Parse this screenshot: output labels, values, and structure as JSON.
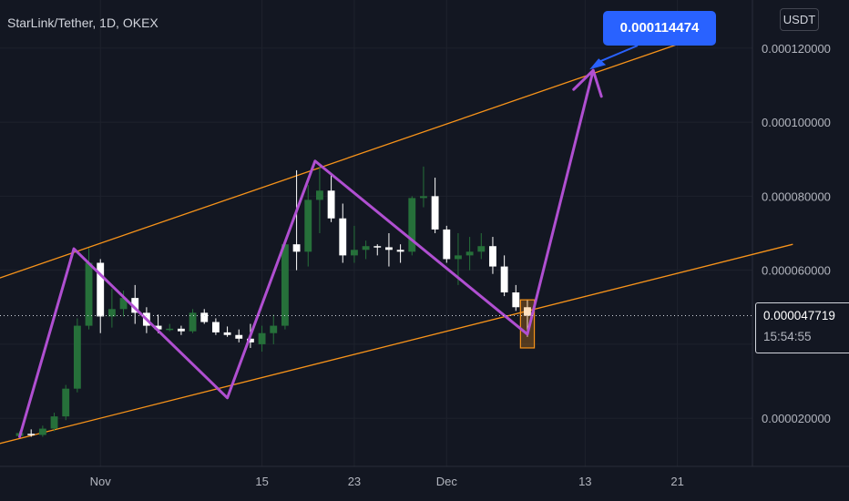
{
  "header": {
    "symbol_title": "StarLink/Tether, 1D, OKEX",
    "currency": "USDT"
  },
  "target_label": "0.000114474",
  "current_price": {
    "value": "0.000047719",
    "countdown": "15:54:55"
  },
  "colors": {
    "background": "#131722",
    "up_candle": "#26703a",
    "down_candle": "#ffffff",
    "channel": "#f7931a",
    "zigzag": "#b04fd1",
    "callout": "#2962ff",
    "highlight_box": "#f7931a"
  },
  "chart_data": {
    "type": "candlestick",
    "title": "StarLink/Tether, 1D, OKEX",
    "ylim": [
      7e-06,
      0.000133
    ],
    "y_ticks": [
      {
        "value": 2e-05,
        "label": "0.000020000"
      },
      {
        "value": 4e-05,
        "label": "0.000040000"
      },
      {
        "value": 6e-05,
        "label": "0.000060000"
      },
      {
        "value": 8e-05,
        "label": "0.000080000"
      },
      {
        "value": 0.0001,
        "label": "0.000100000"
      },
      {
        "value": 0.00012,
        "label": "0.000120000"
      }
    ],
    "x_ticks": [
      {
        "day": 0,
        "label": "Nov"
      },
      {
        "day": 14,
        "label": "15"
      },
      {
        "day": 22,
        "label": "23"
      },
      {
        "day": 30,
        "label": "Dec"
      },
      {
        "day": 42,
        "label": "13"
      },
      {
        "day": 50,
        "label": "21"
      }
    ],
    "xlim_days": [
      -8.7,
      56.5
    ],
    "candles": [
      {
        "day": -7,
        "o": 1.52e-05,
        "h": 1.65e-05,
        "l": 1.48e-05,
        "c": 1.6e-05
      },
      {
        "day": -6,
        "o": 1.58e-05,
        "h": 1.7e-05,
        "l": 1.5e-05,
        "c": 1.55e-05
      },
      {
        "day": -5,
        "o": 1.55e-05,
        "h": 1.8e-05,
        "l": 1.5e-05,
        "c": 1.72e-05
      },
      {
        "day": -4,
        "o": 1.72e-05,
        "h": 2.15e-05,
        "l": 1.65e-05,
        "c": 2.05e-05
      },
      {
        "day": -3,
        "o": 2.05e-05,
        "h": 2.9e-05,
        "l": 1.95e-05,
        "c": 2.8e-05
      },
      {
        "day": -2,
        "o": 2.8e-05,
        "h": 4.7e-05,
        "l": 2.7e-05,
        "c": 4.5e-05
      },
      {
        "day": -1,
        "o": 4.5e-05,
        "h": 6.6e-05,
        "l": 4.4e-05,
        "c": 6.2e-05
      },
      {
        "day": 0,
        "o": 6.2e-05,
        "h": 6.3e-05,
        "l": 4.3e-05,
        "c": 4.75e-05
      },
      {
        "day": 1,
        "o": 4.75e-05,
        "h": 5.5e-05,
        "l": 4.45e-05,
        "c": 4.95e-05
      },
      {
        "day": 2,
        "o": 4.95e-05,
        "h": 5.45e-05,
        "l": 4.75e-05,
        "c": 5.25e-05
      },
      {
        "day": 3,
        "o": 5.25e-05,
        "h": 5.6e-05,
        "l": 4.55e-05,
        "c": 4.85e-05
      },
      {
        "day": 4,
        "o": 4.85e-05,
        "h": 5e-05,
        "l": 4.3e-05,
        "c": 4.5e-05
      },
      {
        "day": 5,
        "o": 4.5e-05,
        "h": 4.8e-05,
        "l": 4.3e-05,
        "c": 4.4e-05
      },
      {
        "day": 6,
        "o": 4.4e-05,
        "h": 4.55e-05,
        "l": 4.35e-05,
        "c": 4.42e-05
      },
      {
        "day": 7,
        "o": 4.42e-05,
        "h": 4.5e-05,
        "l": 4.25e-05,
        "c": 4.35e-05
      },
      {
        "day": 8,
        "o": 4.35e-05,
        "h": 4.95e-05,
        "l": 4.3e-05,
        "c": 4.85e-05
      },
      {
        "day": 9,
        "o": 4.85e-05,
        "h": 4.95e-05,
        "l": 4.55e-05,
        "c": 4.6e-05
      },
      {
        "day": 10,
        "o": 4.6e-05,
        "h": 4.7e-05,
        "l": 4.25e-05,
        "c": 4.32e-05
      },
      {
        "day": 11,
        "o": 4.32e-05,
        "h": 4.48e-05,
        "l": 4.2e-05,
        "c": 4.25e-05
      },
      {
        "day": 12,
        "o": 4.25e-05,
        "h": 4.4e-05,
        "l": 4.05e-05,
        "c": 4.15e-05
      },
      {
        "day": 13,
        "o": 4.15e-05,
        "h": 4.55e-05,
        "l": 3.9e-05,
        "c": 4.05e-05
      },
      {
        "day": 14,
        "o": 4e-05,
        "h": 4.5e-05,
        "l": 3.8e-05,
        "c": 4.3e-05
      },
      {
        "day": 15,
        "o": 4.3e-05,
        "h": 4.8e-05,
        "l": 4e-05,
        "c": 4.5e-05
      },
      {
        "day": 16,
        "o": 4.5e-05,
        "h": 6.8e-05,
        "l": 4.4e-05,
        "c": 6.7e-05
      },
      {
        "day": 17,
        "o": 6.7e-05,
        "h": 8.7e-05,
        "l": 6e-05,
        "c": 6.5e-05
      },
      {
        "day": 18,
        "o": 6.5e-05,
        "h": 8.3e-05,
        "l": 6.1e-05,
        "c": 7.9e-05
      },
      {
        "day": 19,
        "o": 7.9e-05,
        "h": 8.8e-05,
        "l": 7e-05,
        "c": 8.15e-05
      },
      {
        "day": 20,
        "o": 8.15e-05,
        "h": 8.6e-05,
        "l": 7.3e-05,
        "c": 7.4e-05
      },
      {
        "day": 21,
        "o": 7.4e-05,
        "h": 7.8e-05,
        "l": 6.2e-05,
        "c": 6.4e-05
      },
      {
        "day": 22,
        "o": 6.4e-05,
        "h": 7.2e-05,
        "l": 6.2e-05,
        "c": 6.55e-05
      },
      {
        "day": 23,
        "o": 6.55e-05,
        "h": 6.8e-05,
        "l": 6.3e-05,
        "c": 6.65e-05
      },
      {
        "day": 24,
        "o": 6.65e-05,
        "h": 6.7e-05,
        "l": 6.4e-05,
        "c": 6.62e-05
      },
      {
        "day": 25,
        "o": 6.62e-05,
        "h": 7e-05,
        "l": 6.1e-05,
        "c": 6.55e-05
      },
      {
        "day": 26,
        "o": 6.55e-05,
        "h": 6.7e-05,
        "l": 6.2e-05,
        "c": 6.5e-05
      },
      {
        "day": 27,
        "o": 6.5e-05,
        "h": 8e-05,
        "l": 6.4e-05,
        "c": 7.95e-05
      },
      {
        "day": 28,
        "o": 7.95e-05,
        "h": 8.8e-05,
        "l": 7.7e-05,
        "c": 8e-05
      },
      {
        "day": 29,
        "o": 8e-05,
        "h": 8.5e-05,
        "l": 7e-05,
        "c": 7.1e-05
      },
      {
        "day": 30,
        "o": 7.1e-05,
        "h": 7.2e-05,
        "l": 6.2e-05,
        "c": 6.3e-05
      },
      {
        "day": 31,
        "o": 6.3e-05,
        "h": 7e-05,
        "l": 5.6e-05,
        "c": 6.4e-05
      },
      {
        "day": 32,
        "o": 6.4e-05,
        "h": 6.9e-05,
        "l": 6e-05,
        "c": 6.5e-05
      },
      {
        "day": 33,
        "o": 6.5e-05,
        "h": 7e-05,
        "l": 6.3e-05,
        "c": 6.65e-05
      },
      {
        "day": 34,
        "o": 6.65e-05,
        "h": 6.9e-05,
        "l": 5.9e-05,
        "c": 6.1e-05
      },
      {
        "day": 35,
        "o": 6.1e-05,
        "h": 6.4e-05,
        "l": 5.3e-05,
        "c": 5.4e-05
      },
      {
        "day": 36,
        "o": 5.4e-05,
        "h": 5.6e-05,
        "l": 4.9e-05,
        "c": 5e-05
      },
      {
        "day": 37,
        "o": 5e-05,
        "h": 5.2e-05,
        "l": 4.2e-05,
        "c": 4.77e-05
      }
    ],
    "channel_lines": [
      {
        "name": "upper",
        "points": [
          [
            -10.5,
            5.6e-05
          ],
          [
            50,
            0.000121
          ]
        ]
      },
      {
        "name": "lower",
        "points": [
          [
            -10.5,
            1.18e-05
          ],
          [
            60,
            6.7e-05
          ]
        ]
      }
    ],
    "zigzag": [
      [
        -7,
        1.5e-05
      ],
      [
        -2.3,
        6.58e-05
      ],
      [
        11,
        2.55e-05
      ],
      [
        18.6,
        8.95e-05
      ],
      [
        37,
        4.27e-05
      ],
      [
        42.7,
        0.000114
      ]
    ],
    "target_value": 0.000114474,
    "highlight_box": {
      "day_start": 36.4,
      "day_end": 37.6,
      "value_top": 5.2e-05,
      "value_bottom": 3.9e-05
    },
    "current_price": 4.7719e-05
  }
}
